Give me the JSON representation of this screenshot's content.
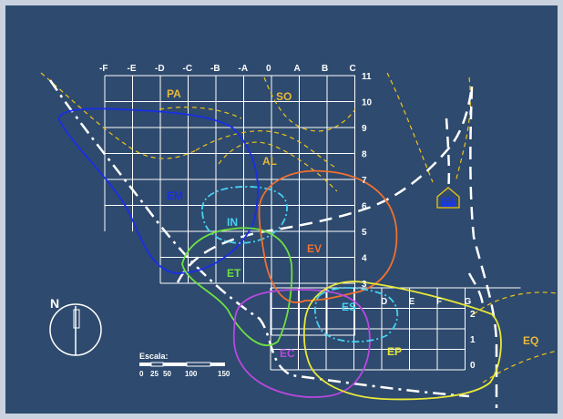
{
  "colors": {
    "background": "#2e4a6e",
    "frame": "#c9d2de",
    "grid": "#ffffff",
    "path": "#ffffff",
    "dashed_boundary": "#f0c419",
    "zone_PA": "#e8b93a",
    "zone_SO": "#e8b93a",
    "zone_AL": "#e8b93a",
    "zone_EM": "#1a2ee6",
    "zone_IN": "#45d2f2",
    "zone_ET": "#6fe044",
    "zone_EV": "#f07030",
    "zone_ES": "#45d2f2",
    "zone_EC": "#b848e0",
    "zone_EP": "#e8e838",
    "zone_EQ": "#e8b93a",
    "building": "#1a3ad8"
  },
  "grid": {
    "column_labels": [
      "-F",
      "-E",
      "-D",
      "-C",
      "-B",
      "-A",
      "0",
      "A",
      "B",
      "C"
    ],
    "row_labels": [
      "11",
      "10",
      "9",
      "8",
      "7",
      "6",
      "5",
      "4",
      "3"
    ],
    "lower_column_labels": [
      "D",
      "E",
      "F",
      "G"
    ],
    "lower_row_labels": [
      "2",
      "1",
      "0"
    ]
  },
  "zones": {
    "PA": "PA",
    "SO": "SO",
    "AL": "AL",
    "EM": "EM",
    "IN": "IN",
    "ET": "ET",
    "EV": "EV",
    "ES": "ES",
    "EC": "EC",
    "EP": "EP",
    "EQ": "EQ"
  },
  "north_label": "N",
  "scale": {
    "title": "Escala:",
    "ticks": [
      "0",
      "25",
      "50",
      "100",
      "150"
    ]
  },
  "building_icon": "house-with-people-icon"
}
